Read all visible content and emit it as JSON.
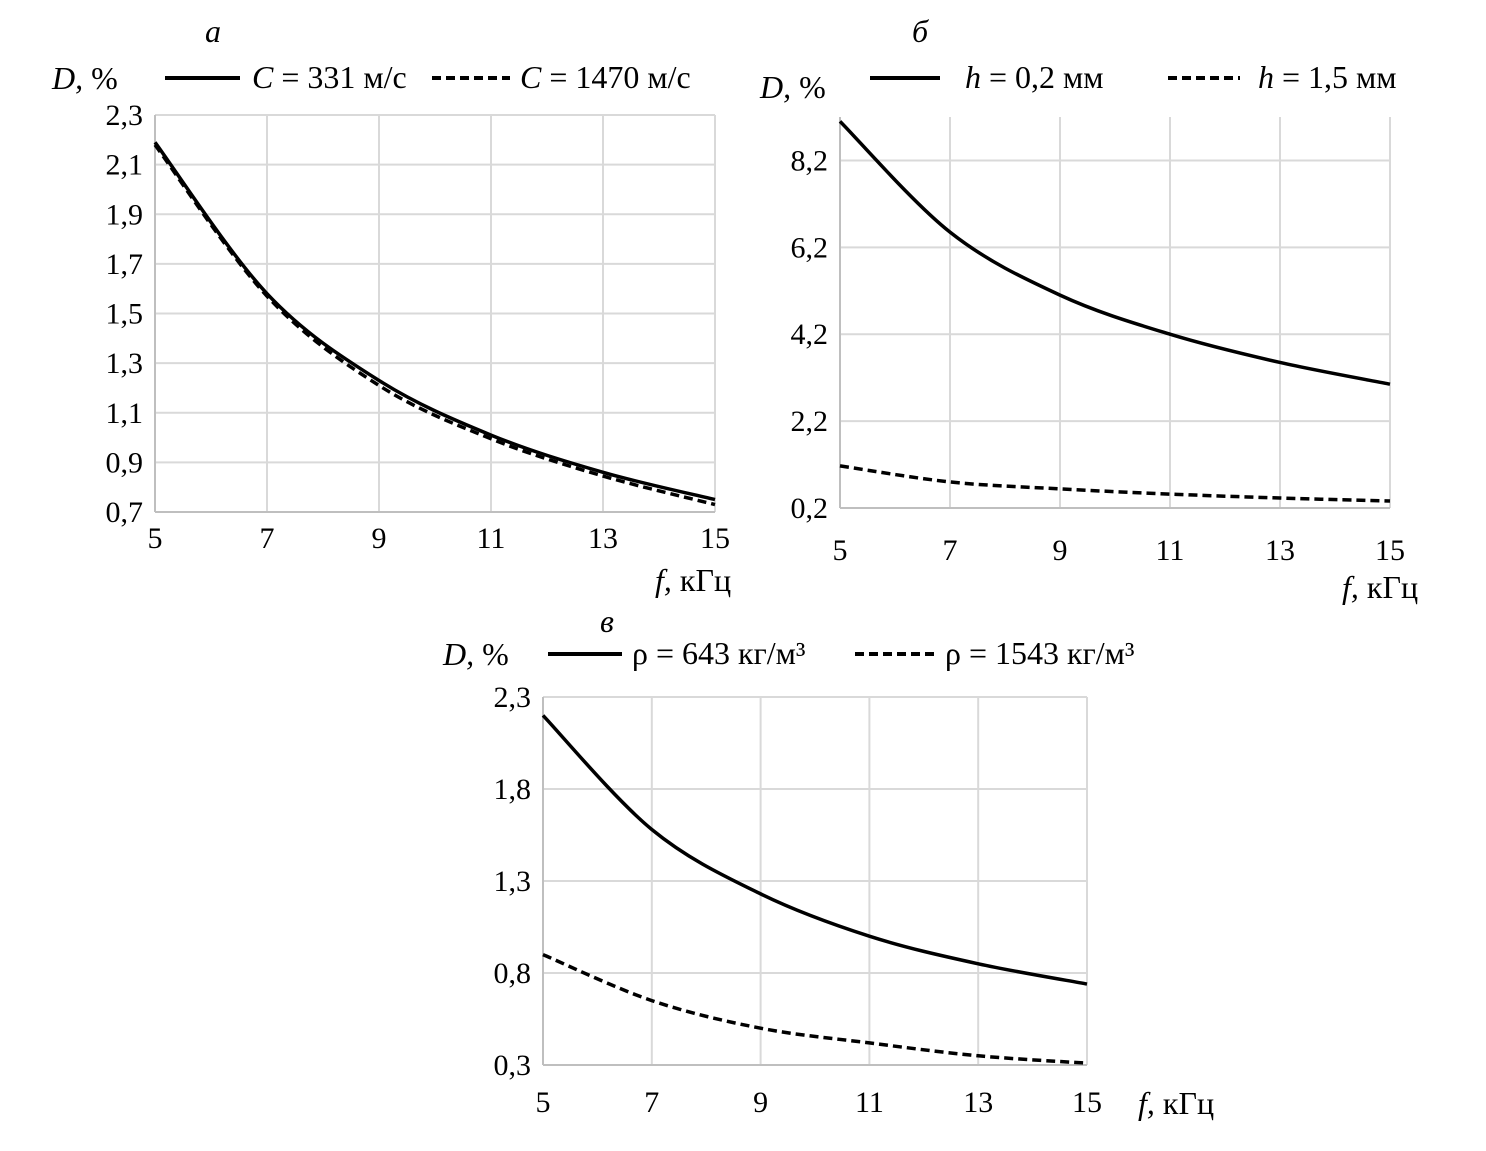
{
  "chart_data": [
    {
      "type": "line",
      "panel_label": "а",
      "ylabel": "D, %",
      "xlabel": "f, кГц",
      "xlim": [
        5,
        15
      ],
      "ylim": [
        0.7,
        2.3
      ],
      "xticks": [
        "5",
        "7",
        "9",
        "11",
        "13",
        "15"
      ],
      "yticks": [
        "0,7",
        "0,9",
        "1,1",
        "1,3",
        "1,5",
        "1,7",
        "1,9",
        "2,1",
        "2,3"
      ],
      "grid": true,
      "legend_placement": "top",
      "x": [
        5,
        7,
        9,
        11,
        13,
        15
      ],
      "series": [
        {
          "name": "C = 331 м/с",
          "style": "solid",
          "values": [
            2.19,
            1.58,
            1.23,
            1.01,
            0.86,
            0.75
          ]
        },
        {
          "name": "C = 1470 м/с",
          "style": "dashed",
          "values": [
            2.18,
            1.57,
            1.21,
            0.995,
            0.845,
            0.73
          ]
        }
      ]
    },
    {
      "type": "line",
      "panel_label": "б",
      "ylabel": "D, %",
      "xlabel": "f, кГц",
      "xlim": [
        5,
        15
      ],
      "ylim": [
        0.2,
        9.2
      ],
      "xticks": [
        "5",
        "7",
        "9",
        "11",
        "13",
        "15"
      ],
      "yticks": [
        "0,2",
        "2,2",
        "4,2",
        "6,2",
        "8,2"
      ],
      "grid": true,
      "legend_placement": "top",
      "x": [
        5,
        7,
        9,
        11,
        13,
        15
      ],
      "series": [
        {
          "name": "h = 0,2 мм",
          "style": "solid",
          "values": [
            9.1,
            6.55,
            5.1,
            4.2,
            3.55,
            3.05
          ]
        },
        {
          "name": "h = 1,5 мм",
          "style": "dashed",
          "values": [
            1.17,
            0.8,
            0.64,
            0.52,
            0.43,
            0.36
          ]
        }
      ]
    },
    {
      "type": "line",
      "panel_label": "в",
      "ylabel": "D, %",
      "xlabel": "f, кГц",
      "xlim": [
        5,
        15
      ],
      "ylim": [
        0.3,
        2.3
      ],
      "xticks": [
        "5",
        "7",
        "9",
        "11",
        "13",
        "15"
      ],
      "yticks": [
        "0,3",
        "0,8",
        "1,3",
        "1,8",
        "2,3"
      ],
      "grid": true,
      "legend_placement": "top",
      "x": [
        5,
        7,
        9,
        11,
        13,
        15
      ],
      "series": [
        {
          "name": "ρ = 643 кг/м³",
          "style": "solid",
          "values": [
            2.2,
            1.58,
            1.23,
            1.0,
            0.85,
            0.74
          ]
        },
        {
          "name": "ρ = 1543 кг/м³",
          "style": "dashed",
          "values": [
            0.9,
            0.65,
            0.5,
            0.42,
            0.35,
            0.31
          ]
        }
      ]
    }
  ]
}
